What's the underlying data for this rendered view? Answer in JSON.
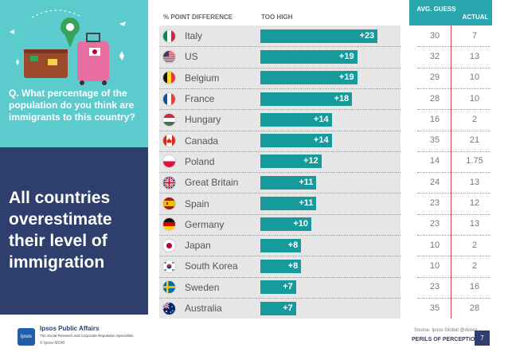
{
  "left": {
    "question": "Q.   What percentage of the population do you think are immigrants to this country?",
    "headline": "All countries overestimate their level of immigration",
    "brand": "Ipsos Public Affairs",
    "brand_sub": "The Social Research and Corporate Reputation Specialists",
    "logo_text": "Ipsos",
    "copyright": "© Ipsos MORI"
  },
  "header": {
    "diff": "% POINT DIFFERENCE",
    "too_high": "TOO HIGH",
    "avg_guess": "AVG. GUESS",
    "actual": "ACTUAL"
  },
  "footer": {
    "source": "Source: Ipsos Global @dvisor",
    "perils": "PERILS OF PERCEPTION",
    "page": "7"
  },
  "colors": {
    "bar": "#179a9c",
    "navy": "#2e3f6e",
    "teal": "#5bcbcd",
    "accent_red": "#e0495b"
  },
  "chart_data": {
    "type": "bar",
    "orientation": "horizontal",
    "title": "% POINT DIFFERENCE — TOO HIGH",
    "categories": [
      "Italy",
      "US",
      "Belgium",
      "France",
      "Hungary",
      "Canada",
      "Poland",
      "Great Britain",
      "Spain",
      "Germany",
      "Japan",
      "South Korea",
      "Sweden",
      "Australia"
    ],
    "values": [
      23,
      19,
      19,
      18,
      14,
      14,
      12,
      11,
      11,
      10,
      8,
      8,
      7,
      7
    ],
    "value_labels": [
      "+23",
      "+19",
      "+19",
      "+18",
      "+14",
      "+14",
      "+12",
      "+11",
      "+11",
      "+10",
      "+8",
      "+8",
      "+7",
      "+7"
    ],
    "avg_guess": [
      "30",
      "32",
      "29",
      "28",
      "16",
      "35",
      "14",
      "24",
      "23",
      "23",
      "10",
      "10",
      "23",
      "35"
    ],
    "actual": [
      "7",
      "13",
      "10",
      "10",
      "2",
      "21",
      "1.75",
      "13",
      "12",
      "13",
      "2",
      "2",
      "16",
      "28"
    ],
    "flags": [
      {
        "type": "v3",
        "c": [
          "#009246",
          "#ffffff",
          "#ce2b37"
        ]
      },
      {
        "type": "us"
      },
      {
        "type": "v3",
        "c": [
          "#111111",
          "#fdda24",
          "#ef3340"
        ]
      },
      {
        "type": "v3",
        "c": [
          "#0055a4",
          "#ffffff",
          "#ef4135"
        ]
      },
      {
        "type": "h3",
        "c": [
          "#ce2939",
          "#ffffff",
          "#477050"
        ]
      },
      {
        "type": "ca"
      },
      {
        "type": "h2",
        "c": [
          "#ffffff",
          "#dc143c"
        ]
      },
      {
        "type": "gb"
      },
      {
        "type": "es"
      },
      {
        "type": "h3",
        "c": [
          "#111111",
          "#dd0000",
          "#ffce00"
        ]
      },
      {
        "type": "jp"
      },
      {
        "type": "kr"
      },
      {
        "type": "se"
      },
      {
        "type": "au"
      }
    ],
    "xlim": [
      0,
      25
    ]
  }
}
